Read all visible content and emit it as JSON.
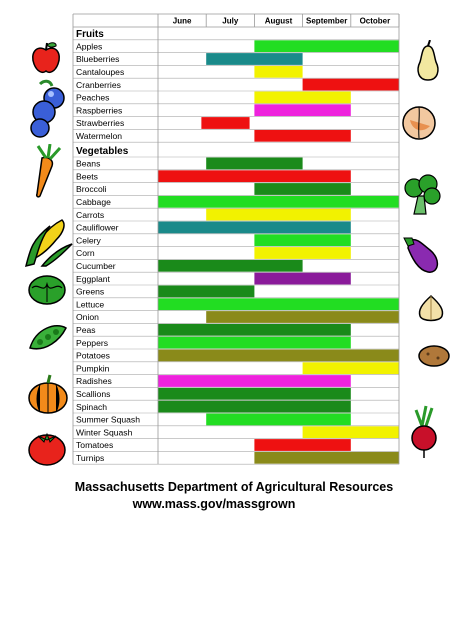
{
  "months": [
    "June",
    "July",
    "August",
    "September",
    "October"
  ],
  "sections": [
    {
      "title": "Fruits",
      "rows": [
        {
          "name": "Apples",
          "bars": [
            {
              "start": 2,
              "end": 5,
              "color": "#22dd22"
            }
          ]
        },
        {
          "name": "Blueberries",
          "bars": [
            {
              "start": 1,
              "end": 3,
              "color": "#1a8a8a"
            }
          ]
        },
        {
          "name": "Cantaloupes",
          "bars": [
            {
              "start": 2,
              "end": 3,
              "color": "#f2f200"
            }
          ]
        },
        {
          "name": "Cranberries",
          "bars": [
            {
              "start": 3,
              "end": 5,
              "color": "#ee1111"
            }
          ]
        },
        {
          "name": "Peaches",
          "bars": [
            {
              "start": 2,
              "end": 4,
              "color": "#f2f200"
            }
          ]
        },
        {
          "name": "Raspberries",
          "bars": [
            {
              "start": 2,
              "end": 4,
              "color": "#ee22dd"
            }
          ]
        },
        {
          "name": "Strawberries",
          "bars": [
            {
              "start": 0.9,
              "end": 1.9,
              "color": "#ee1111"
            }
          ]
        },
        {
          "name": "Watermelon",
          "bars": [
            {
              "start": 2,
              "end": 4,
              "color": "#ee1111"
            }
          ]
        }
      ]
    },
    {
      "title": "Vegetables",
      "rows": [
        {
          "name": "Beans",
          "bars": [
            {
              "start": 1,
              "end": 3,
              "color": "#1a8a1a"
            }
          ]
        },
        {
          "name": "Beets",
          "bars": [
            {
              "start": 0,
              "end": 4,
              "color": "#ee1111"
            }
          ]
        },
        {
          "name": "Broccoli",
          "bars": [
            {
              "start": 2,
              "end": 4,
              "color": "#1a8a1a"
            }
          ]
        },
        {
          "name": "Cabbage",
          "bars": [
            {
              "start": 0,
              "end": 5,
              "color": "#22dd22"
            }
          ]
        },
        {
          "name": "Carrots",
          "bars": [
            {
              "start": 1,
              "end": 4,
              "color": "#f2f200"
            }
          ]
        },
        {
          "name": "Cauliflower",
          "bars": [
            {
              "start": 0,
              "end": 4,
              "color": "#1a8a8a"
            }
          ]
        },
        {
          "name": "Celery",
          "bars": [
            {
              "start": 2,
              "end": 4,
              "color": "#22dd22"
            }
          ]
        },
        {
          "name": "Corn",
          "bars": [
            {
              "start": 2,
              "end": 4,
              "color": "#f2f200"
            }
          ]
        },
        {
          "name": "Cucumber",
          "bars": [
            {
              "start": 0,
              "end": 3,
              "color": "#1a8a1a"
            }
          ]
        },
        {
          "name": "Eggplant",
          "bars": [
            {
              "start": 2,
              "end": 4,
              "color": "#8a1a9a"
            }
          ]
        },
        {
          "name": "Greens",
          "bars": [
            {
              "start": 0,
              "end": 2,
              "color": "#1a8a1a"
            }
          ]
        },
        {
          "name": "Lettuce",
          "bars": [
            {
              "start": 0,
              "end": 5,
              "color": "#22dd22"
            }
          ]
        },
        {
          "name": "Onion",
          "bars": [
            {
              "start": 1,
              "end": 5,
              "color": "#8a8a1a"
            }
          ]
        },
        {
          "name": "Peas",
          "bars": [
            {
              "start": 0,
              "end": 4,
              "color": "#1a8a1a"
            }
          ]
        },
        {
          "name": "Peppers",
          "bars": [
            {
              "start": 0,
              "end": 4,
              "color": "#22dd22"
            }
          ]
        },
        {
          "name": "Potatoes",
          "bars": [
            {
              "start": 0,
              "end": 5,
              "color": "#8a8a1a"
            }
          ]
        },
        {
          "name": "Pumpkin",
          "bars": [
            {
              "start": 3,
              "end": 5,
              "color": "#f2f200"
            }
          ]
        },
        {
          "name": "Radishes",
          "bars": [
            {
              "start": 0,
              "end": 4,
              "color": "#ee22dd"
            }
          ]
        },
        {
          "name": "Scallions",
          "bars": [
            {
              "start": 0,
              "end": 4,
              "color": "#1a8a1a"
            }
          ]
        },
        {
          "name": "Spinach",
          "bars": [
            {
              "start": 0,
              "end": 4,
              "color": "#1a8a1a"
            }
          ]
        },
        {
          "name": "Summer Squash",
          "bars": [
            {
              "start": 1,
              "end": 4,
              "color": "#22dd22"
            }
          ]
        },
        {
          "name": "Winter Squash",
          "bars": [
            {
              "start": 3,
              "end": 5,
              "color": "#f2f200"
            }
          ]
        },
        {
          "name": "Tomatoes",
          "bars": [
            {
              "start": 2,
              "end": 4,
              "color": "#ee1111"
            }
          ]
        },
        {
          "name": "Turnips",
          "bars": [
            {
              "start": 2,
              "end": 5,
              "color": "#8a8a1a"
            }
          ]
        }
      ]
    }
  ],
  "footer": {
    "org": "Massachusetts Department of Agricultural Resources",
    "url": "www.mass.gov/massgrown"
  },
  "clipart_left": [
    "apple-icon",
    "blueberries-icon",
    "carrot-icon",
    "corn-icon",
    "lettuce-icon",
    "peas-icon",
    "pumpkin-icon",
    "tomato-icon"
  ],
  "clipart_right": [
    "pear-icon",
    "peach-icon",
    "broccoli-icon",
    "eggplant-icon",
    "onion-icon",
    "potato-icon",
    "beet-icon"
  ]
}
